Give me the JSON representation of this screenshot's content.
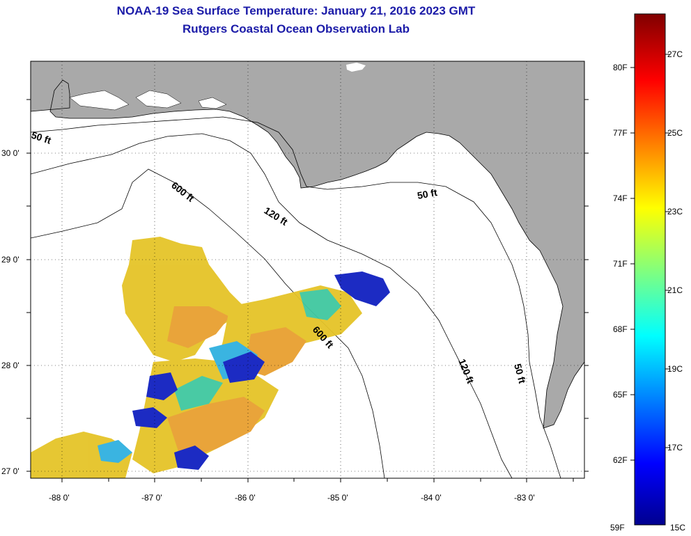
{
  "title": "NOAA-19 Sea Surface Temperature:  January 21, 2016 2023 GMT",
  "subtitle": "Rutgers Coastal Ocean Observation Lab",
  "lat_labels": [
    "30 0'",
    "29 0'",
    "28 0'",
    "27 0'"
  ],
  "lon_labels": [
    "-88 0'",
    "-87 0'",
    "-86 0'",
    "-85 0'",
    "-84 0'",
    "-83 0'"
  ],
  "contours": {
    "c50_west": "50 ft",
    "c600_top": "600 ft",
    "c120_top": "120 ft",
    "c50_east": "50 ft",
    "c600_mid": "600 ft",
    "c120_south": "120 ft",
    "c50_south": "50 ft"
  },
  "colorbar": {
    "f_labels": [
      "80F",
      "77F",
      "74F",
      "71F",
      "68F",
      "65F",
      "62F",
      "59F"
    ],
    "c_labels": [
      "27C",
      "25C",
      "23C",
      "21C",
      "19C",
      "17C",
      "15C"
    ]
  },
  "colors": {
    "land": "#a9a9a9",
    "title": "#1b1ba8"
  }
}
